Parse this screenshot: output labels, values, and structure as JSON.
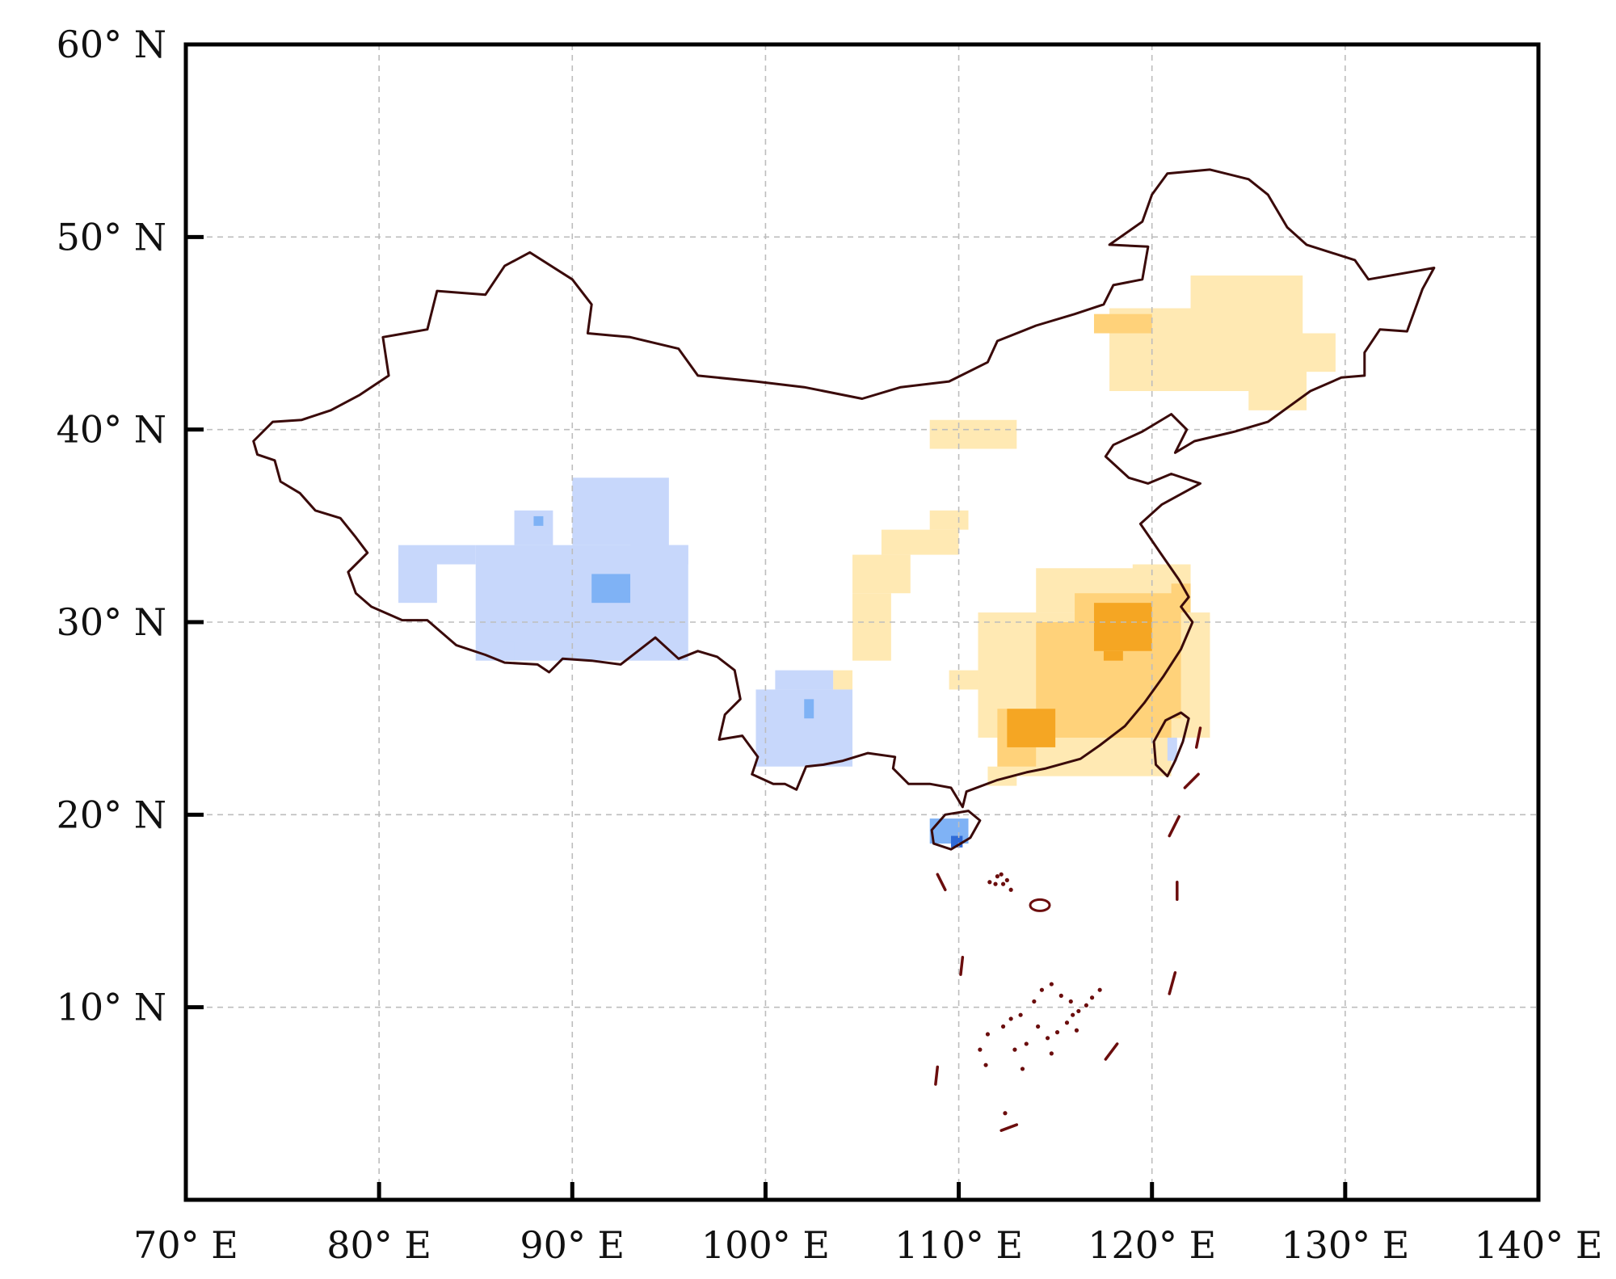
{
  "map": {
    "projection": "equirectangular",
    "extent": {
      "lon": [
        70,
        140
      ],
      "lat": [
        0,
        60
      ]
    },
    "grid": {
      "visible": true,
      "style": "dashed",
      "color": "#bdbdbd"
    },
    "x_ticks": [
      {
        "value": 70,
        "label": "70° E"
      },
      {
        "value": 80,
        "label": "80° E"
      },
      {
        "value": 90,
        "label": "90° E"
      },
      {
        "value": 100,
        "label": "100° E"
      },
      {
        "value": 110,
        "label": "110° E"
      },
      {
        "value": 120,
        "label": "120° E"
      },
      {
        "value": 130,
        "label": "130° E"
      },
      {
        "value": 140,
        "label": "140° E"
      }
    ],
    "y_ticks": [
      {
        "value": 10,
        "label": "10° N"
      },
      {
        "value": 20,
        "label": "20° N"
      },
      {
        "value": 30,
        "label": "30° N"
      },
      {
        "value": 40,
        "label": "40° N"
      },
      {
        "value": 50,
        "label": "50° N"
      },
      {
        "value": 60,
        "label": "60° N"
      }
    ],
    "colors": {
      "frame": "#000000",
      "boundary": "#3a0a0a",
      "islands": "#6b0d0d",
      "warm_light": "#ffe9b3",
      "warm_mid": "#ffd27a",
      "warm_strong": "#f5a623",
      "cool_light": "#c7d7fb",
      "cool_mid": "#7fb2f5",
      "cool_strong": "#2f6ad6"
    },
    "boundary": [
      [
        73.5,
        39.4
      ],
      [
        74.5,
        40.4
      ],
      [
        76,
        40.5
      ],
      [
        77.5,
        41
      ],
      [
        79,
        41.8
      ],
      [
        80.5,
        42.8
      ],
      [
        80.2,
        44.8
      ],
      [
        82.5,
        45.2
      ],
      [
        83,
        47.2
      ],
      [
        85.5,
        47
      ],
      [
        86.5,
        48.5
      ],
      [
        87.8,
        49.2
      ],
      [
        90,
        47.8
      ],
      [
        91,
        46.5
      ],
      [
        90.8,
        45
      ],
      [
        93,
        44.8
      ],
      [
        95.5,
        44.2
      ],
      [
        96.5,
        42.8
      ],
      [
        99.5,
        42.5
      ],
      [
        102,
        42.2
      ],
      [
        105,
        41.6
      ],
      [
        107,
        42.2
      ],
      [
        109.5,
        42.5
      ],
      [
        111.5,
        43.5
      ],
      [
        112,
        44.6
      ],
      [
        114,
        45.4
      ],
      [
        116,
        46
      ],
      [
        117.5,
        46.5
      ],
      [
        118,
        47.5
      ],
      [
        119.5,
        47.8
      ],
      [
        119.8,
        49.5
      ],
      [
        117.8,
        49.6
      ],
      [
        119.5,
        50.8
      ],
      [
        120,
        52.2
      ],
      [
        120.8,
        53.3
      ],
      [
        123,
        53.5
      ],
      [
        125,
        53
      ],
      [
        126,
        52.2
      ],
      [
        127,
        50.5
      ],
      [
        128,
        49.6
      ],
      [
        130.5,
        48.8
      ],
      [
        131.2,
        47.8
      ],
      [
        133.5,
        48.2
      ],
      [
        134.6,
        48.4
      ],
      [
        134,
        47.3
      ],
      [
        133.2,
        45.1
      ],
      [
        131.8,
        45.2
      ],
      [
        131,
        44
      ],
      [
        131,
        42.8
      ],
      [
        129.8,
        42.7
      ],
      [
        128.2,
        42
      ],
      [
        126,
        40.4
      ],
      [
        124.3,
        39.9
      ],
      [
        122.2,
        39.4
      ],
      [
        121.2,
        38.8
      ],
      [
        121.8,
        40
      ],
      [
        121,
        40.8
      ],
      [
        119.5,
        39.9
      ],
      [
        118,
        39.2
      ],
      [
        117.6,
        38.6
      ],
      [
        118.8,
        37.5
      ],
      [
        119.8,
        37.2
      ],
      [
        121,
        37.7
      ],
      [
        122.5,
        37.2
      ],
      [
        120.5,
        36.1
      ],
      [
        119.4,
        35.1
      ],
      [
        120.5,
        33.5
      ],
      [
        121.4,
        32.2
      ],
      [
        121.9,
        31.3
      ],
      [
        121.5,
        30.8
      ],
      [
        122.1,
        30
      ],
      [
        121.5,
        28.6
      ],
      [
        120.6,
        27.2
      ],
      [
        119.6,
        25.8
      ],
      [
        118.6,
        24.6
      ],
      [
        117.3,
        23.6
      ],
      [
        116.3,
        22.9
      ],
      [
        114.5,
        22.4
      ],
      [
        113.5,
        22.2
      ],
      [
        112,
        21.8
      ],
      [
        110.4,
        21.2
      ],
      [
        110.2,
        20.4
      ],
      [
        109.6,
        21.4
      ],
      [
        108.5,
        21.6
      ],
      [
        107.4,
        21.6
      ],
      [
        106.6,
        22.4
      ],
      [
        106.7,
        23
      ],
      [
        105.3,
        23.2
      ],
      [
        104,
        22.8
      ],
      [
        103,
        22.6
      ],
      [
        102.1,
        22.5
      ],
      [
        101.6,
        21.3
      ],
      [
        101,
        21.6
      ],
      [
        100.4,
        21.6
      ],
      [
        99.3,
        22.1
      ],
      [
        99.6,
        23
      ],
      [
        98.8,
        24.1
      ],
      [
        97.6,
        23.9
      ],
      [
        97.9,
        25.2
      ],
      [
        98.7,
        26
      ],
      [
        98.4,
        27.5
      ],
      [
        97.5,
        28.2
      ],
      [
        96.5,
        28.5
      ],
      [
        95.5,
        28.1
      ],
      [
        94.3,
        29.2
      ],
      [
        92.5,
        27.8
      ],
      [
        91,
        28
      ],
      [
        89.5,
        28.1
      ],
      [
        88.8,
        27.4
      ],
      [
        88.2,
        27.8
      ],
      [
        86.5,
        27.9
      ],
      [
        85.5,
        28.3
      ],
      [
        84,
        28.8
      ],
      [
        82.5,
        30.1
      ],
      [
        81.2,
        30.1
      ],
      [
        79.6,
        30.8
      ],
      [
        78.8,
        31.5
      ],
      [
        78.4,
        32.6
      ],
      [
        79.4,
        33.6
      ],
      [
        78.8,
        34.4
      ],
      [
        78,
        35.4
      ],
      [
        76.7,
        35.8
      ],
      [
        75.9,
        36.7
      ],
      [
        74.9,
        37.3
      ],
      [
        74.6,
        38.4
      ],
      [
        73.7,
        38.7
      ],
      [
        73.5,
        39.4
      ]
    ],
    "hainan": [
      [
        108.6,
        19.2
      ],
      [
        109.3,
        20.0
      ],
      [
        110.5,
        20.2
      ],
      [
        111.1,
        19.7
      ],
      [
        110.6,
        18.8
      ],
      [
        109.6,
        18.2
      ],
      [
        108.7,
        18.5
      ],
      [
        108.6,
        19.2
      ]
    ],
    "taiwan": [
      [
        120.2,
        22.6
      ],
      [
        120.1,
        23.8
      ],
      [
        120.7,
        24.9
      ],
      [
        121.5,
        25.3
      ],
      [
        121.9,
        25.0
      ],
      [
        121.6,
        23.8
      ],
      [
        121.2,
        22.8
      ],
      [
        120.8,
        22.0
      ],
      [
        120.2,
        22.6
      ]
    ],
    "nine_dash": [
      [
        [
          108.9,
          16.9
        ],
        [
          109.3,
          16.1
        ]
      ],
      [
        [
          110.1,
          11.7
        ],
        [
          110.2,
          12.6
        ]
      ],
      [
        [
          108.8,
          6.0
        ],
        [
          108.9,
          6.9
        ]
      ],
      [
        [
          112.2,
          3.6
        ],
        [
          113.0,
          3.9
        ]
      ],
      [
        [
          117.6,
          7.3
        ],
        [
          118.2,
          8.1
        ]
      ],
      [
        [
          120.9,
          10.7
        ],
        [
          121.2,
          11.8
        ]
      ],
      [
        [
          121.3,
          15.6
        ],
        [
          121.3,
          16.5
        ]
      ],
      [
        [
          120.9,
          18.9
        ],
        [
          121.4,
          19.9
        ]
      ],
      [
        [
          121.7,
          21.4
        ],
        [
          122.4,
          22.1
        ]
      ],
      [
        [
          122.3,
          23.5
        ],
        [
          122.5,
          24.5
        ]
      ]
    ],
    "paracel": [
      [
        111.6,
        16.5
      ],
      [
        112.0,
        16.8
      ],
      [
        112.3,
        16.4
      ],
      [
        112.7,
        16.1
      ],
      [
        112.2,
        16.9
      ],
      [
        111.9,
        16.4
      ],
      [
        112.5,
        16.6
      ]
    ],
    "spratly": [
      [
        111.5,
        8.6
      ],
      [
        112.3,
        9.0
      ],
      [
        113.2,
        9.6
      ],
      [
        113.9,
        10.3
      ],
      [
        114.3,
        10.9
      ],
      [
        114.8,
        11.2
      ],
      [
        115.3,
        10.6
      ],
      [
        115.8,
        10.3
      ],
      [
        116.2,
        9.8
      ],
      [
        116.6,
        10.1
      ],
      [
        116.9,
        10.5
      ],
      [
        117.3,
        10.9
      ],
      [
        114.1,
        9.0
      ],
      [
        114.6,
        8.4
      ],
      [
        113.5,
        8.1
      ],
      [
        112.9,
        7.8
      ],
      [
        115.1,
        8.7
      ],
      [
        115.6,
        9.2
      ],
      [
        116.1,
        8.8
      ],
      [
        111.1,
        7.8
      ],
      [
        111.4,
        7.0
      ],
      [
        112.7,
        9.4
      ],
      [
        113.3,
        6.8
      ],
      [
        114.8,
        7.6
      ],
      [
        115.9,
        9.6
      ],
      [
        112.4,
        4.5
      ]
    ],
    "warm_light_cells": [
      [
        104.5,
        107.5,
        31.5,
        33.5
      ],
      [
        104.5,
        106.5,
        28,
        31.5
      ],
      [
        106,
        110,
        33.5,
        34.8
      ],
      [
        108.5,
        110.5,
        34.8,
        35.8
      ],
      [
        111,
        123,
        24,
        30.5
      ],
      [
        112,
        121,
        22,
        24
      ],
      [
        114,
        121,
        30.5,
        32.8
      ],
      [
        119,
        122,
        30,
        33
      ],
      [
        111.5,
        113,
        21.5,
        22.5
      ],
      [
        108.5,
        113,
        39,
        40.5
      ],
      [
        103.5,
        104.5,
        26.5,
        27.5
      ],
      [
        109.5,
        111,
        26.5,
        27.5
      ],
      [
        117.8,
        126,
        42,
        46.3
      ],
      [
        122,
        127.8,
        43,
        48
      ],
      [
        125,
        128,
        41,
        43.5
      ],
      [
        127,
        129.5,
        43,
        45
      ]
    ],
    "warm_mid_cells": [
      [
        114,
        121,
        24,
        30
      ],
      [
        116,
        121.5,
        25,
        31.5
      ],
      [
        112,
        114,
        22.5,
        25.5
      ],
      [
        117,
        120,
        45,
        46
      ],
      [
        121,
        122,
        30.5,
        32
      ]
    ],
    "warm_strong_cells": [
      [
        117,
        120,
        28.5,
        31
      ],
      [
        117.5,
        118.5,
        28,
        28.5
      ],
      [
        112.5,
        115,
        23.5,
        25.5
      ]
    ],
    "cool_light_cells": [
      [
        85,
        96,
        28,
        34
      ],
      [
        87,
        89,
        34,
        35.8
      ],
      [
        90,
        95,
        34,
        37.5
      ],
      [
        93,
        96,
        33,
        34
      ],
      [
        81,
        83,
        31,
        33.5
      ],
      [
        81,
        85,
        33,
        34
      ],
      [
        86,
        87,
        28,
        29
      ],
      [
        99.5,
        104.5,
        22.5,
        26.5
      ],
      [
        100.5,
        103.5,
        26.5,
        27.5
      ],
      [
        120.8,
        121.3,
        22.8,
        24
      ]
    ],
    "cool_mid_cells": [
      [
        91,
        93,
        31,
        32.5
      ],
      [
        88,
        88.5,
        35,
        35.5
      ],
      [
        102,
        102.5,
        25,
        26
      ],
      [
        108.5,
        110.5,
        18.5,
        19.8
      ]
    ],
    "cool_strong_cells": [
      [
        109.6,
        110.2,
        18.3,
        18.9
      ]
    ]
  }
}
